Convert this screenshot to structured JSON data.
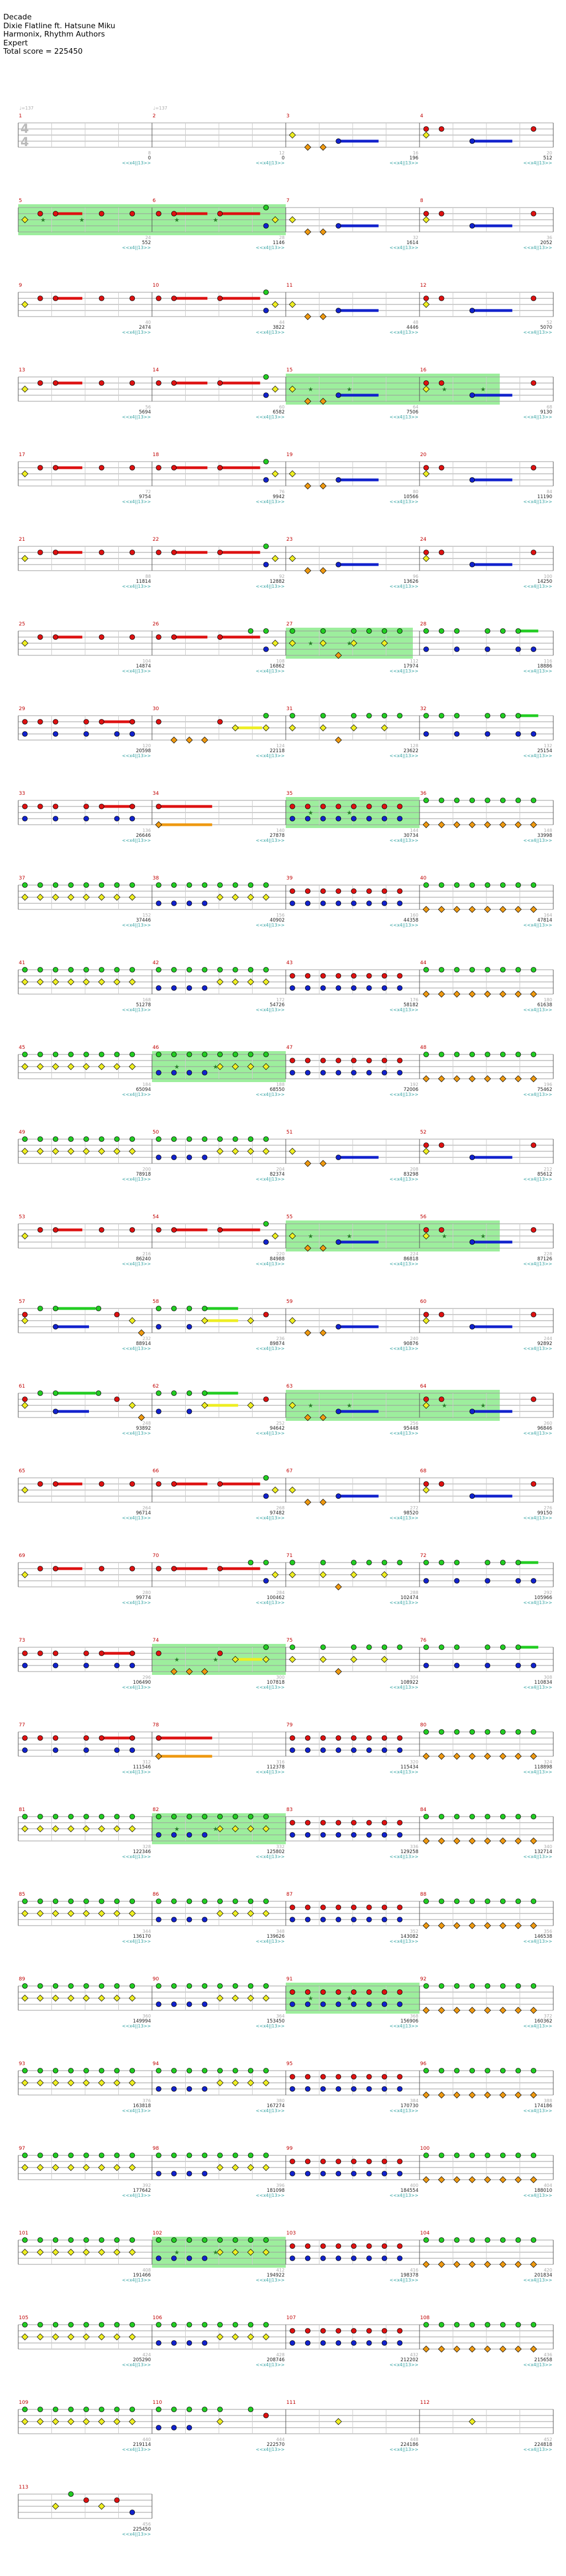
{
  "header": {
    "song_title": "Decade",
    "artist": "Dixie Flatline ft. Hatsune Miku",
    "charters": "Harmonix, Rhythm Authors",
    "difficulty": "Expert",
    "total_score": "Total score = 225450"
  },
  "time_signature": {
    "top": "4",
    "bottom": "4"
  },
  "tempo_marks": [
    {
      "measure": 1,
      "label": "♩=137"
    },
    {
      "measure": 2,
      "label": "♩=137"
    }
  ],
  "lane_colors": {
    "green": "#22cc22",
    "red": "#dd1111",
    "yellow": "#eeee22",
    "blue": "#1122cc",
    "orange": "#ee9911",
    "star_power": "#7ce87c",
    "score_number": "#222222",
    "multiplier": "#30a0a0",
    "beat_count": "#aaaaaa"
  },
  "multiplier_label": "<<x4||13>>",
  "score_marks": [
    {
      "m": 1,
      "score": "0"
    },
    {
      "m": 2,
      "score": "0"
    },
    {
      "m": 3,
      "score": "196"
    },
    {
      "m": 4,
      "score": "512"
    },
    {
      "m": 5,
      "score": "552"
    },
    {
      "m": 6,
      "score": "1146"
    },
    {
      "m": 7,
      "score": "1614"
    },
    {
      "m": 8,
      "score": "2052"
    },
    {
      "m": 9,
      "score": "2474"
    },
    {
      "m": 10,
      "score": "3822"
    },
    {
      "m": 11,
      "score": "4446"
    },
    {
      "m": 12,
      "score": "5070"
    },
    {
      "m": 13,
      "score": "5694"
    },
    {
      "m": 14,
      "score": "6582"
    },
    {
      "m": 15,
      "score": "7506"
    },
    {
      "m": 16,
      "score": "9130"
    },
    {
      "m": 17,
      "score": "9754"
    },
    {
      "m": 18,
      "score": "9942"
    },
    {
      "m": 19,
      "score": "10566"
    },
    {
      "m": 20,
      "score": "11190"
    },
    {
      "m": 21,
      "score": "11814"
    },
    {
      "m": 22,
      "score": "12882"
    },
    {
      "m": 23,
      "score": "13626"
    },
    {
      "m": 24,
      "score": "14250"
    },
    {
      "m": 25,
      "score": "14874"
    },
    {
      "m": 26,
      "score": "16862"
    },
    {
      "m": 27,
      "score": "17974"
    },
    {
      "m": 28,
      "score": "18886"
    },
    {
      "m": 29,
      "score": "20598"
    },
    {
      "m": 30,
      "score": "22118"
    },
    {
      "m": 31,
      "score": "23622"
    },
    {
      "m": 32,
      "score": "25154"
    },
    {
      "m": 33,
      "score": "26646"
    },
    {
      "m": 34,
      "score": "27878"
    },
    {
      "m": 35,
      "score": "30734"
    },
    {
      "m": 36,
      "score": "33998"
    },
    {
      "m": 37,
      "score": "37446"
    },
    {
      "m": 38,
      "score": "40902"
    },
    {
      "m": 39,
      "score": "44358"
    },
    {
      "m": 40,
      "score": "47814"
    },
    {
      "m": 41,
      "score": "51278"
    },
    {
      "m": 42,
      "score": "54726"
    },
    {
      "m": 43,
      "score": "58182"
    },
    {
      "m": 44,
      "score": "61638"
    },
    {
      "m": 45,
      "score": "65094"
    },
    {
      "m": 46,
      "score": "68550"
    },
    {
      "m": 47,
      "score": "72006"
    },
    {
      "m": 48,
      "score": "75462"
    },
    {
      "m": 49,
      "score": "78918"
    },
    {
      "m": 50,
      "score": "82374"
    },
    {
      "m": 51,
      "score": "83298"
    },
    {
      "m": 52,
      "score": "85612"
    },
    {
      "m": 53,
      "score": "86240"
    },
    {
      "m": 54,
      "score": "84988"
    },
    {
      "m": 55,
      "score": "86818"
    },
    {
      "m": 56,
      "score": "87126"
    },
    {
      "m": 57,
      "score": "88914"
    },
    {
      "m": 58,
      "score": "89874"
    },
    {
      "m": 59,
      "score": "90876"
    },
    {
      "m": 60,
      "score": "92892"
    },
    {
      "m": 61,
      "score": "93892"
    },
    {
      "m": 62,
      "score": "94642"
    },
    {
      "m": 63,
      "score": "95448"
    },
    {
      "m": 64,
      "score": "96846"
    },
    {
      "m": 65,
      "score": "96714"
    },
    {
      "m": 66,
      "score": "97482"
    },
    {
      "m": 67,
      "score": "98520"
    },
    {
      "m": 68,
      "score": "99150"
    },
    {
      "m": 69,
      "score": "99774"
    },
    {
      "m": 70,
      "score": "100462"
    },
    {
      "m": 71,
      "score": "102474"
    },
    {
      "m": 72,
      "score": "105966"
    },
    {
      "m": 73,
      "score": "106490"
    },
    {
      "m": 74,
      "score": "107818"
    },
    {
      "m": 75,
      "score": "108922"
    },
    {
      "m": 76,
      "score": "110834"
    },
    {
      "m": 77,
      "score": "111546"
    },
    {
      "m": 78,
      "score": "112378"
    },
    {
      "m": 79,
      "score": "115434"
    },
    {
      "m": 80,
      "score": "118898"
    },
    {
      "m": 81,
      "score": "122346"
    },
    {
      "m": 82,
      "score": "125802"
    },
    {
      "m": 83,
      "score": "129258"
    },
    {
      "m": 84,
      "score": "132714"
    },
    {
      "m": 85,
      "score": "136170"
    },
    {
      "m": 86,
      "score": "139626"
    },
    {
      "m": 87,
      "score": "143082"
    },
    {
      "m": 88,
      "score": "146538"
    },
    {
      "m": 89,
      "score": "149994"
    },
    {
      "m": 90,
      "score": "153450"
    },
    {
      "m": 91,
      "score": "156906"
    },
    {
      "m": 92,
      "score": "160362"
    },
    {
      "m": 93,
      "score": "163818"
    },
    {
      "m": 94,
      "score": "167274"
    },
    {
      "m": 95,
      "score": "170730"
    },
    {
      "m": 96,
      "score": "174186"
    },
    {
      "m": 97,
      "score": "177642"
    },
    {
      "m": 98,
      "score": "181098"
    },
    {
      "m": 99,
      "score": "184554"
    },
    {
      "m": 100,
      "score": "188010"
    },
    {
      "m": 101,
      "score": "191466"
    },
    {
      "m": 102,
      "score": "194922"
    },
    {
      "m": 103,
      "score": "198378"
    },
    {
      "m": 104,
      "score": "201834"
    },
    {
      "m": 105,
      "score": "205290"
    },
    {
      "m": 106,
      "score": "208746"
    },
    {
      "m": 107,
      "score": "212202"
    },
    {
      "m": 108,
      "score": "215658"
    },
    {
      "m": 109,
      "score": "219114"
    },
    {
      "m": 110,
      "score": "222570"
    },
    {
      "m": 111,
      "score": "224186"
    },
    {
      "m": 112,
      "score": "224818"
    },
    {
      "m": 113,
      "score": "225450"
    }
  ],
  "star_power_phrases": [
    {
      "m": 5,
      "from": 0,
      "to": 1
    },
    {
      "m": 6,
      "from": 0,
      "to": 1
    },
    {
      "m": 15,
      "from": 0,
      "to": 1
    },
    {
      "m": 16,
      "from": 0,
      "to": 0.6
    },
    {
      "m": 27,
      "from": 0,
      "to": 0.95
    },
    {
      "m": 35,
      "from": 0,
      "to": 1
    },
    {
      "m": 46,
      "from": 0,
      "to": 1
    },
    {
      "m": 55,
      "from": 0,
      "to": 1
    },
    {
      "m": 56,
      "from": 0,
      "to": 0.6
    },
    {
      "m": 63,
      "from": 0,
      "to": 1
    },
    {
      "m": 64,
      "from": 0,
      "to": 0.6
    },
    {
      "m": 74,
      "from": 0,
      "to": 1
    },
    {
      "m": 82,
      "from": 0,
      "to": 1
    },
    {
      "m": 91,
      "from": 0,
      "to": 1
    },
    {
      "m": 102,
      "from": 0,
      "to": 1
    }
  ],
  "measure_patterns": {
    "1": "intro",
    "2": "intro",
    "3": "pA",
    "4": "pB",
    "5": "pC",
    "6": "pD",
    "7": "pA",
    "8": "pB",
    "9": "pC",
    "10": "pD",
    "11": "pA",
    "12": "pB",
    "13": "pC",
    "14": "pD",
    "15": "pA",
    "16": "pB",
    "17": "pC",
    "18": "pD",
    "19": "pA",
    "20": "pB",
    "21": "pC",
    "22": "pD",
    "23": "pA",
    "24": "pB",
    "25": "pC",
    "26": "pE",
    "27": "pF",
    "28": "pG",
    "29": "pH",
    "30": "pI",
    "31": "pF",
    "32": "pG",
    "33": "pH",
    "34": "pJ",
    "35": "pK",
    "36": "pL",
    "37": "pM",
    "38": "pN",
    "39": "pK",
    "40": "pL",
    "41": "pM",
    "42": "pN",
    "43": "pK",
    "44": "pL",
    "45": "pM",
    "46": "pN",
    "47": "pK",
    "48": "pL",
    "49": "pM",
    "50": "pN",
    "51": "pA",
    "52": "pB",
    "53": "pC",
    "54": "pD",
    "55": "pA",
    "56": "pB",
    "57": "pO",
    "58": "pP",
    "59": "pA",
    "60": "pB",
    "61": "pO",
    "62": "pP",
    "63": "pA",
    "64": "pB",
    "65": "pC",
    "66": "pD",
    "67": "pA",
    "68": "pB",
    "69": "pC",
    "70": "pE",
    "71": "pF",
    "72": "pG",
    "73": "pH",
    "74": "pI",
    "75": "pF",
    "76": "pG",
    "77": "pH",
    "78": "pJ",
    "79": "pK",
    "80": "pL",
    "81": "pM",
    "82": "pN",
    "83": "pK",
    "84": "pL",
    "85": "pM",
    "86": "pN",
    "87": "pK",
    "88": "pL",
    "89": "pM",
    "90": "pN",
    "91": "pK",
    "92": "pL",
    "93": "pM",
    "94": "pN",
    "95": "pK",
    "96": "pL",
    "97": "pM",
    "98": "pN",
    "99": "pK",
    "100": "pL",
    "101": "pM",
    "102": "pN",
    "103": "pK",
    "104": "pL",
    "105": "pM",
    "106": "pN",
    "107": "pK",
    "108": "pL",
    "109": "pM",
    "110": "pQ",
    "111": "pR",
    "112": "pR",
    "113": "pS"
  },
  "patterns": {
    "intro": [],
    "pA": [
      {
        "b": 0,
        "l": "yellow"
      },
      {
        "b": 0.125,
        "l": "orange"
      },
      {
        "b": 0.25,
        "l": "orange"
      },
      {
        "b": 0.375,
        "l": "blue",
        "sus": 0.3
      }
    ],
    "pB": [
      {
        "b": 0,
        "l": "red"
      },
      {
        "b": 0,
        "l": "yellow"
      },
      {
        "b": 0.125,
        "l": "red"
      },
      {
        "b": 0.375,
        "l": "blue",
        "sus": 0.3
      },
      {
        "b": 0.875,
        "l": "red"
      }
    ],
    "pC": [
      {
        "b": 0,
        "l": "yellow"
      },
      {
        "b": 0.125,
        "l": "red"
      },
      {
        "b": 0.25,
        "l": "red",
        "sus": 0.2
      },
      {
        "b": 0.625,
        "l": "red"
      },
      {
        "b": 0.875,
        "l": "red"
      }
    ],
    "pD": [
      {
        "b": 0,
        "l": "red"
      },
      {
        "b": 0.125,
        "l": "red",
        "sus": 0.25
      },
      {
        "b": 0.5,
        "l": "red",
        "sus": 0.3
      },
      {
        "b": 0.875,
        "l": "green"
      },
      {
        "b": 0.875,
        "l": "blue"
      },
      {
        "b": 0.95,
        "l": "yellow"
      }
    ],
    "pE": [
      {
        "b": 0,
        "l": "red"
      },
      {
        "b": 0.125,
        "l": "red",
        "sus": 0.25
      },
      {
        "b": 0.5,
        "l": "red",
        "sus": 0.3
      },
      {
        "b": 0.75,
        "l": "green"
      },
      {
        "b": 0.875,
        "l": "green"
      },
      {
        "b": 0.875,
        "l": "blue"
      },
      {
        "b": 0.95,
        "l": "yellow"
      }
    ],
    "pF": [
      {
        "b": 0,
        "l": "green"
      },
      {
        "b": 0,
        "l": "yellow"
      },
      {
        "b": 0.25,
        "l": "green"
      },
      {
        "b": 0.25,
        "l": "yellow"
      },
      {
        "b": 0.375,
        "l": "orange"
      },
      {
        "b": 0.5,
        "l": "green"
      },
      {
        "b": 0.5,
        "l": "yellow"
      },
      {
        "b": 0.625,
        "l": "green"
      },
      {
        "b": 0.75,
        "l": "green"
      },
      {
        "b": 0.75,
        "l": "yellow"
      },
      {
        "b": 0.875,
        "l": "green"
      }
    ],
    "pG": [
      {
        "b": 0,
        "l": "green"
      },
      {
        "b": 0,
        "l": "blue"
      },
      {
        "b": 0.125,
        "l": "green"
      },
      {
        "b": 0.25,
        "l": "green"
      },
      {
        "b": 0.25,
        "l": "blue"
      },
      {
        "b": 0.5,
        "l": "green"
      },
      {
        "b": 0.5,
        "l": "blue"
      },
      {
        "b": 0.625,
        "l": "green"
      },
      {
        "b": 0.75,
        "l": "green",
        "sus": 0.15
      },
      {
        "b": 0.75,
        "l": "blue"
      },
      {
        "b": 0.875,
        "l": "blue"
      }
    ],
    "pH": [
      {
        "b": 0,
        "l": "red"
      },
      {
        "b": 0,
        "l": "blue"
      },
      {
        "b": 0.125,
        "l": "red"
      },
      {
        "b": 0.25,
        "l": "red"
      },
      {
        "b": 0.25,
        "l": "blue"
      },
      {
        "b": 0.5,
        "l": "red"
      },
      {
        "b": 0.5,
        "l": "blue"
      },
      {
        "b": 0.625,
        "l": "red",
        "sus": 0.25
      },
      {
        "b": 0.75,
        "l": "blue"
      },
      {
        "b": 0.875,
        "l": "red"
      },
      {
        "b": 0.875,
        "l": "blue"
      }
    ],
    "pI": [
      {
        "b": 0,
        "l": "red"
      },
      {
        "b": 0.125,
        "l": "orange"
      },
      {
        "b": 0.25,
        "l": "orange"
      },
      {
        "b": 0.375,
        "l": "orange"
      },
      {
        "b": 0.5,
        "l": "red"
      },
      {
        "b": 0.625,
        "l": "yellow",
        "sus": 0.2
      },
      {
        "b": 0.875,
        "l": "green"
      },
      {
        "b": 0.875,
        "l": "yellow"
      }
    ],
    "pJ": [
      {
        "b": 0,
        "l": "red",
        "sus": 0.4
      },
      {
        "b": 0,
        "l": "orange",
        "sus": 0.4
      }
    ],
    "pK": [
      {
        "b": 0,
        "l": "red"
      },
      {
        "b": 0,
        "l": "blue"
      },
      {
        "b": 0.125,
        "l": "red"
      },
      {
        "b": 0.125,
        "l": "blue"
      },
      {
        "b": 0.25,
        "l": "red"
      },
      {
        "b": 0.25,
        "l": "blue"
      },
      {
        "b": 0.375,
        "l": "red"
      },
      {
        "b": 0.375,
        "l": "blue"
      },
      {
        "b": 0.5,
        "l": "red"
      },
      {
        "b": 0.5,
        "l": "blue"
      },
      {
        "b": 0.625,
        "l": "red"
      },
      {
        "b": 0.625,
        "l": "blue"
      },
      {
        "b": 0.75,
        "l": "red"
      },
      {
        "b": 0.75,
        "l": "blue"
      },
      {
        "b": 0.875,
        "l": "red"
      },
      {
        "b": 0.875,
        "l": "blue"
      }
    ],
    "pL": [
      {
        "b": 0,
        "l": "green"
      },
      {
        "b": 0,
        "l": "orange"
      },
      {
        "b": 0.125,
        "l": "green"
      },
      {
        "b": 0.125,
        "l": "orange"
      },
      {
        "b": 0.25,
        "l": "green"
      },
      {
        "b": 0.25,
        "l": "orange"
      },
      {
        "b": 0.375,
        "l": "green"
      },
      {
        "b": 0.375,
        "l": "orange"
      },
      {
        "b": 0.5,
        "l": "green"
      },
      {
        "b": 0.5,
        "l": "orange"
      },
      {
        "b": 0.625,
        "l": "green"
      },
      {
        "b": 0.625,
        "l": "orange"
      },
      {
        "b": 0.75,
        "l": "green"
      },
      {
        "b": 0.75,
        "l": "orange"
      },
      {
        "b": 0.875,
        "l": "green"
      },
      {
        "b": 0.875,
        "l": "orange"
      }
    ],
    "pM": [
      {
        "b": 0,
        "l": "green"
      },
      {
        "b": 0,
        "l": "yellow"
      },
      {
        "b": 0.125,
        "l": "green"
      },
      {
        "b": 0.125,
        "l": "yellow"
      },
      {
        "b": 0.25,
        "l": "green"
      },
      {
        "b": 0.25,
        "l": "yellow"
      },
      {
        "b": 0.375,
        "l": "green"
      },
      {
        "b": 0.375,
        "l": "yellow"
      },
      {
        "b": 0.5,
        "l": "green"
      },
      {
        "b": 0.5,
        "l": "yellow"
      },
      {
        "b": 0.625,
        "l": "green"
      },
      {
        "b": 0.625,
        "l": "yellow"
      },
      {
        "b": 0.75,
        "l": "green"
      },
      {
        "b": 0.75,
        "l": "yellow"
      },
      {
        "b": 0.875,
        "l": "green"
      },
      {
        "b": 0.875,
        "l": "yellow"
      }
    ],
    "pN": [
      {
        "b": 0,
        "l": "green"
      },
      {
        "b": 0,
        "l": "blue"
      },
      {
        "b": 0.125,
        "l": "green"
      },
      {
        "b": 0.125,
        "l": "blue"
      },
      {
        "b": 0.25,
        "l": "green"
      },
      {
        "b": 0.25,
        "l": "blue"
      },
      {
        "b": 0.375,
        "l": "green"
      },
      {
        "b": 0.375,
        "l": "blue"
      },
      {
        "b": 0.5,
        "l": "green"
      },
      {
        "b": 0.5,
        "l": "yellow"
      },
      {
        "b": 0.625,
        "l": "green"
      },
      {
        "b": 0.625,
        "l": "yellow"
      },
      {
        "b": 0.75,
        "l": "green"
      },
      {
        "b": 0.75,
        "l": "yellow"
      },
      {
        "b": 0.875,
        "l": "green"
      },
      {
        "b": 0.875,
        "l": "yellow"
      }
    ],
    "pO": [
      {
        "b": 0,
        "l": "red"
      },
      {
        "b": 0,
        "l": "yellow"
      },
      {
        "b": 0.125,
        "l": "green"
      },
      {
        "b": 0.25,
        "l": "green",
        "sus": 0.3
      },
      {
        "b": 0.25,
        "l": "blue",
        "sus": 0.25
      },
      {
        "b": 0.6,
        "l": "green"
      },
      {
        "b": 0.75,
        "l": "red"
      },
      {
        "b": 0.875,
        "l": "yellow"
      },
      {
        "b": 0.95,
        "l": "orange"
      }
    ],
    "pP": [
      {
        "b": 0,
        "l": "green"
      },
      {
        "b": 0,
        "l": "blue"
      },
      {
        "b": 0.125,
        "l": "green"
      },
      {
        "b": 0.25,
        "l": "green"
      },
      {
        "b": 0.25,
        "l": "blue"
      },
      {
        "b": 0.375,
        "l": "green",
        "sus": 0.25
      },
      {
        "b": 0.375,
        "l": "yellow",
        "sus": 0.25
      },
      {
        "b": 0.75,
        "l": "yellow"
      },
      {
        "b": 0.875,
        "l": "red"
      }
    ],
    "pQ": [
      {
        "b": 0,
        "l": "green"
      },
      {
        "b": 0,
        "l": "blue"
      },
      {
        "b": 0.125,
        "l": "green"
      },
      {
        "b": 0.125,
        "l": "blue"
      },
      {
        "b": 0.25,
        "l": "green"
      },
      {
        "b": 0.25,
        "l": "blue"
      },
      {
        "b": 0.375,
        "l": "green"
      },
      {
        "b": 0.5,
        "l": "green"
      },
      {
        "b": 0.5,
        "l": "yellow"
      },
      {
        "b": 0.75,
        "l": "green"
      },
      {
        "b": 0.875,
        "l": "red"
      }
    ],
    "pR": [
      {
        "b": 0.375,
        "l": "yellow"
      }
    ],
    "pS": [
      {
        "b": 0.25,
        "l": "yellow"
      },
      {
        "b": 0.375,
        "l": "green"
      },
      {
        "b": 0.5,
        "l": "red"
      },
      {
        "b": 0.625,
        "l": "yellow"
      },
      {
        "b": 0.75,
        "l": "red"
      },
      {
        "b": 0.875,
        "l": "blue"
      }
    ]
  }
}
